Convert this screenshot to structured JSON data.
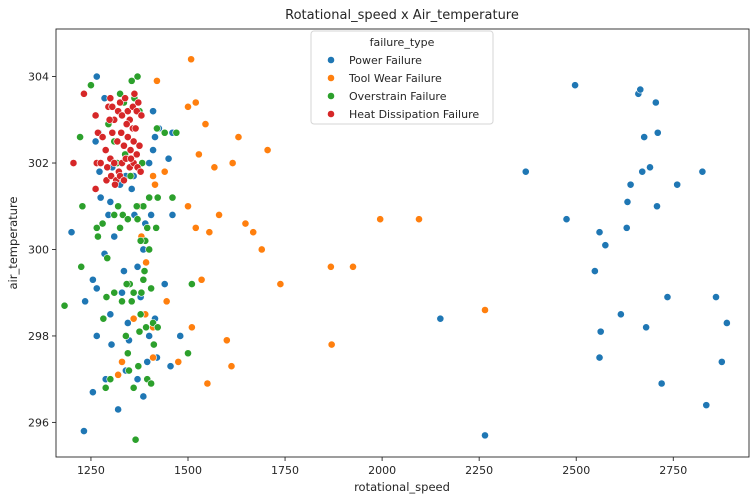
{
  "chart_data": {
    "type": "scatter",
    "title": "Rotational_speed x Air_temperature",
    "xlabel": "rotational_speed",
    "ylabel": "air_temperature",
    "xlim": [
      1160,
      2945
    ],
    "ylim": [
      295.2,
      305.1
    ],
    "xticks": [
      1250,
      1500,
      1750,
      2000,
      2250,
      2500,
      2750
    ],
    "yticks": [
      296,
      298,
      300,
      302,
      304
    ],
    "grid": false,
    "legend": {
      "title": "failure_type",
      "placement": "top-center"
    },
    "series": [
      {
        "name": "Power Failure",
        "color": "#1f77b4",
        "points": [
          [
            1232,
            295.8
          ],
          [
            1200,
            300.4
          ],
          [
            1235,
            298.8
          ],
          [
            1255,
            299.3
          ],
          [
            1265,
            299.1
          ],
          [
            1265,
            298.0
          ],
          [
            1255,
            296.7
          ],
          [
            1288,
            297.0
          ],
          [
            1300,
            298.5
          ],
          [
            1320,
            296.3
          ],
          [
            1285,
            299.9
          ],
          [
            1310,
            299.0
          ],
          [
            1275,
            301.2
          ],
          [
            1295,
            300.8
          ],
          [
            1310,
            300.3
          ],
          [
            1325,
            301.5
          ],
          [
            1305,
            301.9
          ],
          [
            1270,
            302.7
          ],
          [
            1285,
            303.5
          ],
          [
            1265,
            304.0
          ],
          [
            1262,
            302.5
          ],
          [
            1272,
            301.8
          ],
          [
            1300,
            301.1
          ],
          [
            1340,
            301.7
          ],
          [
            1355,
            301.4
          ],
          [
            1390,
            300.6
          ],
          [
            1405,
            300.8
          ],
          [
            1400,
            302.0
          ],
          [
            1410,
            302.3
          ],
          [
            1425,
            302.8
          ],
          [
            1450,
            302.1
          ],
          [
            1410,
            303.2
          ],
          [
            1330,
            299.0
          ],
          [
            1370,
            299.6
          ],
          [
            1385,
            300.0
          ],
          [
            1345,
            298.3
          ],
          [
            1400,
            298.0
          ],
          [
            1415,
            298.4
          ],
          [
            1395,
            297.4
          ],
          [
            1420,
            297.5
          ],
          [
            1455,
            297.3
          ],
          [
            1480,
            298.0
          ],
          [
            1385,
            296.6
          ],
          [
            1370,
            297.0
          ],
          [
            1340,
            297.2
          ],
          [
            1440,
            299.2
          ],
          [
            1460,
            300.8
          ],
          [
            1360,
            301.7
          ],
          [
            1460,
            302.7
          ],
          [
            1348,
            297.9
          ],
          [
            1303,
            297.8
          ],
          [
            1335,
            299.5
          ],
          [
            1378,
            298.9
          ],
          [
            1415,
            302.6
          ],
          [
            1362,
            300.8
          ],
          [
            2150,
            298.4
          ],
          [
            2265,
            295.7
          ],
          [
            2370,
            301.8
          ],
          [
            2475,
            300.7
          ],
          [
            2497,
            303.8
          ],
          [
            2548,
            299.5
          ],
          [
            2560,
            300.4
          ],
          [
            2563,
            298.1
          ],
          [
            2560,
            297.5
          ],
          [
            2575,
            300.1
          ],
          [
            2615,
            298.5
          ],
          [
            2630,
            300.5
          ],
          [
            2632,
            301.1
          ],
          [
            2640,
            301.5
          ],
          [
            2660,
            303.6
          ],
          [
            2665,
            303.7
          ],
          [
            2670,
            301.8
          ],
          [
            2675,
            302.6
          ],
          [
            2680,
            298.2
          ],
          [
            2690,
            301.9
          ],
          [
            2705,
            303.4
          ],
          [
            2710,
            302.7
          ],
          [
            2708,
            301.0
          ],
          [
            2720,
            296.9
          ],
          [
            2735,
            298.9
          ],
          [
            2760,
            301.5
          ],
          [
            2825,
            301.8
          ],
          [
            2835,
            296.4
          ],
          [
            2860,
            298.9
          ],
          [
            2875,
            297.4
          ],
          [
            2888,
            298.3
          ]
        ]
      },
      {
        "name": "Tool Wear Failure",
        "color": "#ff7f0e",
        "points": [
          [
            1508,
            304.4
          ],
          [
            1420,
            303.9
          ],
          [
            1500,
            303.3
          ],
          [
            1520,
            303.4
          ],
          [
            1545,
            302.9
          ],
          [
            1630,
            302.6
          ],
          [
            1705,
            302.3
          ],
          [
            1528,
            302.2
          ],
          [
            1568,
            301.9
          ],
          [
            1615,
            302.0
          ],
          [
            1440,
            301.8
          ],
          [
            1410,
            301.7
          ],
          [
            1440,
            302.7
          ],
          [
            1500,
            301.0
          ],
          [
            1580,
            300.8
          ],
          [
            1648,
            300.6
          ],
          [
            1668,
            300.4
          ],
          [
            1520,
            300.5
          ],
          [
            1555,
            300.4
          ],
          [
            1690,
            300.0
          ],
          [
            1995,
            300.7
          ],
          [
            2095,
            300.7
          ],
          [
            1868,
            299.6
          ],
          [
            1925,
            299.6
          ],
          [
            1738,
            299.2
          ],
          [
            1535,
            299.3
          ],
          [
            1445,
            298.8
          ],
          [
            1410,
            298.2
          ],
          [
            1510,
            298.2
          ],
          [
            1600,
            297.9
          ],
          [
            1870,
            297.8
          ],
          [
            2265,
            298.6
          ],
          [
            1330,
            297.4
          ],
          [
            1410,
            297.5
          ],
          [
            1475,
            297.4
          ],
          [
            1612,
            297.3
          ],
          [
            1550,
            296.9
          ],
          [
            1320,
            297.1
          ],
          [
            1390,
            298.5
          ],
          [
            1360,
            298.4
          ],
          [
            1372,
            301.0
          ],
          [
            1380,
            300.3
          ],
          [
            1392,
            299.7
          ],
          [
            1415,
            301.5
          ]
        ]
      },
      {
        "name": "Overstrain Failure",
        "color": "#2ca02c",
        "points": [
          [
            1182,
            298.7
          ],
          [
            1225,
            299.6
          ],
          [
            1228,
            301.0
          ],
          [
            1222,
            302.6
          ],
          [
            1250,
            303.8
          ],
          [
            1265,
            300.5
          ],
          [
            1268,
            300.3
          ],
          [
            1280,
            300.6
          ],
          [
            1290,
            298.9
          ],
          [
            1292,
            299.8
          ],
          [
            1282,
            298.4
          ],
          [
            1288,
            296.8
          ],
          [
            1300,
            297.0
          ],
          [
            1310,
            299.0
          ],
          [
            1310,
            300.8
          ],
          [
            1320,
            301.0
          ],
          [
            1332,
            300.8
          ],
          [
            1345,
            300.7
          ],
          [
            1350,
            299.2
          ],
          [
            1355,
            298.8
          ],
          [
            1340,
            298.0
          ],
          [
            1345,
            297.6
          ],
          [
            1348,
            297.2
          ],
          [
            1360,
            296.8
          ],
          [
            1365,
            295.6
          ],
          [
            1372,
            297.3
          ],
          [
            1375,
            298.1
          ],
          [
            1378,
            298.5
          ],
          [
            1380,
            299.0
          ],
          [
            1385,
            299.3
          ],
          [
            1388,
            299.5
          ],
          [
            1390,
            300.2
          ],
          [
            1395,
            300.5
          ],
          [
            1400,
            300.0
          ],
          [
            1405,
            299.1
          ],
          [
            1410,
            298.3
          ],
          [
            1395,
            297.0
          ],
          [
            1405,
            296.9
          ],
          [
            1412,
            297.8
          ],
          [
            1422,
            298.2
          ],
          [
            1370,
            300.7
          ],
          [
            1378,
            300.2
          ],
          [
            1385,
            301.0
          ],
          [
            1400,
            301.2
          ],
          [
            1418,
            300.5
          ],
          [
            1422,
            301.2
          ],
          [
            1382,
            302.0
          ],
          [
            1318,
            302.0
          ],
          [
            1310,
            302.5
          ],
          [
            1295,
            302.9
          ],
          [
            1325,
            303.6
          ],
          [
            1335,
            303.4
          ],
          [
            1355,
            303.9
          ],
          [
            1370,
            304.0
          ],
          [
            1362,
            303.5
          ],
          [
            1375,
            303.2
          ],
          [
            1420,
            302.8
          ],
          [
            1440,
            302.7
          ],
          [
            1470,
            302.7
          ],
          [
            1500,
            297.6
          ],
          [
            1460,
            301.2
          ],
          [
            1510,
            299.2
          ],
          [
            1338,
            302.2
          ],
          [
            1352,
            301.7
          ],
          [
            1368,
            301.0
          ],
          [
            1325,
            300.5
          ],
          [
            1360,
            299.0
          ],
          [
            1392,
            298.2
          ],
          [
            1330,
            298.8
          ],
          [
            1342,
            299.2
          ]
        ]
      },
      {
        "name": "Heat Dissipation Failure",
        "color": "#d62728",
        "points": [
          [
            1232,
            303.6
          ],
          [
            1262,
            303.1
          ],
          [
            1268,
            302.7
          ],
          [
            1280,
            302.6
          ],
          [
            1295,
            303.3
          ],
          [
            1300,
            303.5
          ],
          [
            1305,
            303.3
          ],
          [
            1310,
            303.0
          ],
          [
            1320,
            303.2
          ],
          [
            1325,
            303.4
          ],
          [
            1330,
            303.1
          ],
          [
            1338,
            303.5
          ],
          [
            1345,
            303.2
          ],
          [
            1350,
            303.0
          ],
          [
            1358,
            303.3
          ],
          [
            1362,
            303.6
          ],
          [
            1368,
            303.2
          ],
          [
            1372,
            303.4
          ],
          [
            1380,
            303.1
          ],
          [
            1305,
            302.7
          ],
          [
            1318,
            302.5
          ],
          [
            1328,
            302.7
          ],
          [
            1335,
            302.4
          ],
          [
            1345,
            302.6
          ],
          [
            1352,
            302.3
          ],
          [
            1360,
            302.5
          ],
          [
            1368,
            302.2
          ],
          [
            1375,
            302.4
          ],
          [
            1205,
            302.0
          ],
          [
            1265,
            302.0
          ],
          [
            1275,
            302.0
          ],
          [
            1292,
            301.9
          ],
          [
            1300,
            302.1
          ],
          [
            1310,
            302.0
          ],
          [
            1322,
            301.8
          ],
          [
            1330,
            302.0
          ],
          [
            1340,
            302.1
          ],
          [
            1350,
            301.9
          ],
          [
            1360,
            302.0
          ],
          [
            1370,
            301.9
          ],
          [
            1378,
            301.8
          ],
          [
            1290,
            301.6
          ],
          [
            1302,
            301.7
          ],
          [
            1315,
            301.6
          ],
          [
            1325,
            301.7
          ],
          [
            1335,
            301.6
          ],
          [
            1262,
            301.4
          ],
          [
            1312,
            301.5
          ],
          [
            1358,
            302.8
          ],
          [
            1298,
            303.0
          ],
          [
            1342,
            302.9
          ],
          [
            1365,
            302.8
          ],
          [
            1288,
            302.3
          ],
          [
            1353,
            302.1
          ]
        ]
      }
    ]
  }
}
